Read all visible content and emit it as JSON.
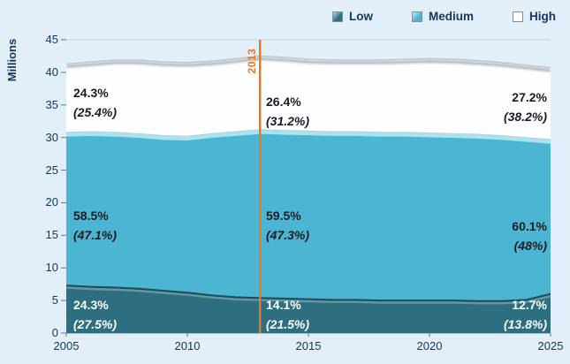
{
  "ylabel": "Millions",
  "legend": {
    "items": [
      {
        "label": "Low",
        "color": "#2d6e80"
      },
      {
        "label": "Medium",
        "color": "#4cb6d2"
      },
      {
        "label": "High",
        "color": "#fdfeff"
      }
    ]
  },
  "chart_data": {
    "type": "area",
    "stacked": true,
    "title": "",
    "xlabel": "",
    "ylabel": "Millions",
    "ylim": [
      0,
      45
    ],
    "yticks": [
      "0",
      "5",
      "10",
      "15",
      "20",
      "25",
      "30",
      "35",
      "40",
      "45"
    ],
    "xticks": [
      "2005",
      "2010",
      "2015",
      "2020",
      "2025"
    ],
    "grid": false,
    "legend_position": "top-right",
    "x": [
      2005,
      2006,
      2007,
      2008,
      2009,
      2010,
      2011,
      2012,
      2013,
      2014,
      2015,
      2016,
      2017,
      2018,
      2019,
      2020,
      2021,
      2022,
      2023,
      2024,
      2025
    ],
    "series": [
      {
        "name": "Low",
        "color": "#2d6e80",
        "values": [
          7.3,
          7.1,
          7.0,
          6.8,
          6.5,
          6.2,
          5.8,
          5.5,
          5.4,
          5.3,
          5.2,
          5.1,
          5.1,
          5.0,
          5.0,
          5.0,
          5.0,
          4.9,
          4.9,
          5.1,
          6.0
        ]
      },
      {
        "name": "Medium",
        "color": "#4cb6d2",
        "values": [
          23.5,
          23.8,
          23.8,
          23.8,
          23.8,
          24.0,
          24.8,
          25.4,
          25.8,
          25.8,
          25.8,
          25.8,
          25.8,
          25.8,
          25.8,
          25.7,
          25.6,
          25.6,
          25.4,
          24.9,
          23.7
        ]
      },
      {
        "name": "High",
        "color": "#fdfeff",
        "values": [
          10.5,
          10.7,
          11.1,
          11.3,
          11.3,
          11.3,
          11.1,
          11.2,
          11.3,
          11.2,
          11.0,
          11.0,
          11.0,
          11.1,
          11.2,
          11.4,
          11.4,
          11.3,
          11.2,
          11.1,
          11.0
        ]
      }
    ],
    "reference_line": {
      "x": 2013,
      "label": "2013",
      "color": "#e87722"
    }
  },
  "annotations": {
    "left": {
      "high": {
        "value": "24.3%",
        "note": "(25.4%)"
      },
      "medium": {
        "value": "58.5%",
        "note": "(47.1%)"
      },
      "low": {
        "value": "24.3%",
        "note": "(27.5%)"
      }
    },
    "middle": {
      "high": {
        "value": "26.4%",
        "note": "(31.2%)"
      },
      "medium": {
        "value": "59.5%",
        "note": "(47.3%)"
      },
      "low": {
        "value": "14.1%",
        "note": "(21.5%)"
      }
    },
    "right": {
      "high": {
        "value": "27.2%",
        "note": "(38.2%)"
      },
      "medium": {
        "value": "60.1%",
        "note": "(48%)"
      },
      "low": {
        "value": "12.7%",
        "note": "(13.8%)"
      }
    }
  },
  "colors": {
    "background": "#e2eff8",
    "axis_text": "#17365d",
    "accent_orange": "#e87722",
    "annotation_dark": "#1b1b26",
    "annotation_light": "#ffffff"
  }
}
